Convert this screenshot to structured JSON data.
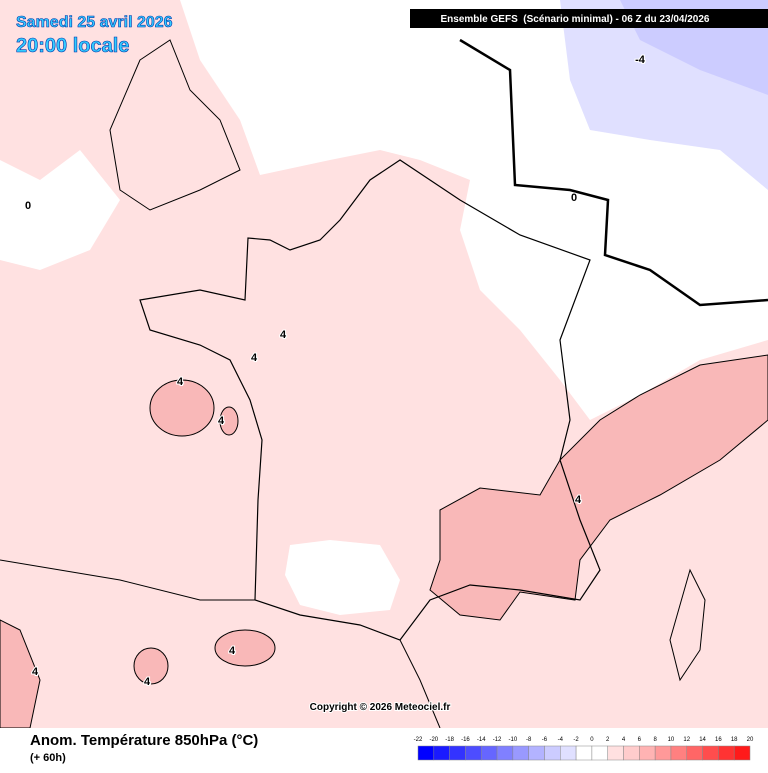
{
  "title": "Samedi 25 avril 2026",
  "subtitle": "20:00 locale",
  "header": "Ensemble GEFS  (Scénario minimal) - 06 Z du 23/04/2026",
  "copyright": "Copyright © 2026 Meteociel.fr",
  "caption": "Anom. Température 850hPa (°C)",
  "lead": "(+ 60h)",
  "contour_labels": [
    0,
    -4,
    0,
    4,
    4,
    4,
    4,
    4,
    4,
    4,
    4
  ],
  "legend": {
    "labels": [
      -22,
      -20,
      -18,
      -16,
      -14,
      -12,
      -10,
      -8,
      -6,
      -4,
      -2,
      0,
      2,
      4,
      6,
      8,
      10,
      12,
      14,
      16,
      18,
      20
    ],
    "colors": [
      "#0000ff",
      "#1a1aff",
      "#3333ff",
      "#4d4dff",
      "#6666ff",
      "#8080ff",
      "#9999ff",
      "#b3b3ff",
      "#ccccff",
      "#e0e0ff",
      "#ffffff",
      "#ffffff",
      "#ffe0e0",
      "#ffcccc",
      "#ffb3b3",
      "#ff9999",
      "#ff8080",
      "#ff6666",
      "#ff4d4d",
      "#ff3333",
      "#ff1a1a"
    ]
  }
}
